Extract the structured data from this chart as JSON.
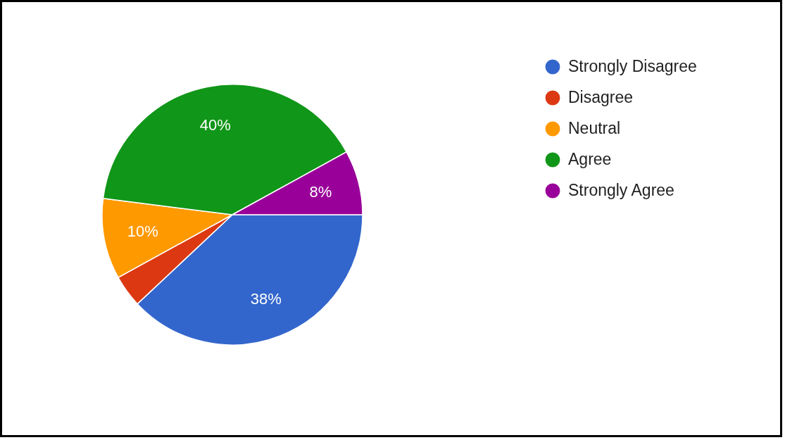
{
  "chart_data": {
    "type": "pie",
    "categories": [
      "Strongly Disagree",
      "Disagree",
      "Neutral",
      "Agree",
      "Strongly Agree"
    ],
    "values": [
      38,
      4,
      10,
      40,
      8
    ],
    "colors": [
      "#3366cc",
      "#dc3912",
      "#ff9900",
      "#109618",
      "#990099"
    ],
    "value_labels": [
      "38%",
      null,
      "10%",
      "40%",
      "8%"
    ],
    "legend": "top right"
  }
}
